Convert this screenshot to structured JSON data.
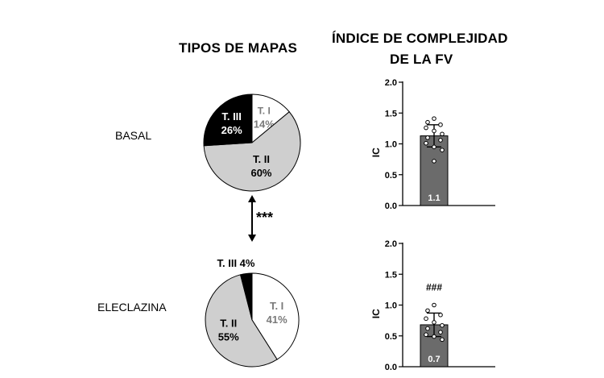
{
  "headers": {
    "maps": "TIPOS DE MAPAS",
    "index_line1": "ÍNDICE DE COMPLEJIDAD",
    "index_line2": "DE LA FV"
  },
  "rows": {
    "basal": "BASAL",
    "eleclazina": "ELECLAZINA"
  },
  "significance": {
    "between_pies": "***",
    "vs_basal": "###"
  },
  "chart_data": [
    {
      "type": "pie",
      "group": "BASAL",
      "slices": [
        {
          "label": "T. I",
          "value": 14,
          "text": "14%",
          "color": "#ffffff"
        },
        {
          "label": "T. II",
          "value": 60,
          "text": "60%",
          "color": "#cfcfcf"
        },
        {
          "label": "T. III",
          "value": 26,
          "text": "26%",
          "color": "#000000"
        }
      ]
    },
    {
      "type": "pie",
      "group": "ELECLAZINA",
      "slices": [
        {
          "label": "T. I",
          "value": 41,
          "text": "41%",
          "color": "#ffffff"
        },
        {
          "label": "T. II",
          "value": 55,
          "text": "55%",
          "color": "#cfcfcf"
        },
        {
          "label": "T. III",
          "value": 4,
          "text": "4%",
          "color": "#000000"
        }
      ]
    },
    {
      "type": "bar",
      "group": "BASAL",
      "ylabel": "IC",
      "ylim": [
        0,
        2
      ],
      "yticks": [
        "0.0",
        "0.5",
        "1.0",
        "1.5",
        "2.0"
      ],
      "mean": 1.13,
      "mean_label": "1.1",
      "error": 0.18,
      "points": [
        1.41,
        1.35,
        1.31,
        1.26,
        1.21,
        1.16,
        1.1,
        1.06,
        1.01,
        0.95,
        0.9,
        0.72
      ],
      "bar_color": "#6b6b6b"
    },
    {
      "type": "bar",
      "group": "ELECLAZINA",
      "ylabel": "IC",
      "ylim": [
        0,
        2
      ],
      "yticks": [
        "0.0",
        "0.5",
        "1.0",
        "1.5",
        "2.0"
      ],
      "mean": 0.68,
      "mean_label": "0.7",
      "error": 0.19,
      "points": [
        1.0,
        0.91,
        0.84,
        0.78,
        0.72,
        0.67,
        0.62,
        0.56,
        0.52,
        0.49,
        0.44
      ],
      "bar_color": "#6b6b6b"
    }
  ]
}
